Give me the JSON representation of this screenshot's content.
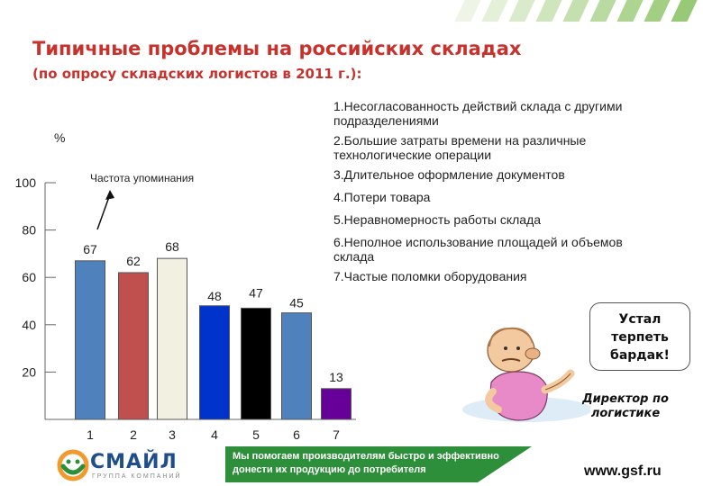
{
  "slide": {
    "title": "Типичные проблемы на российских складах",
    "subtitle": "(по опросу складских логистов в 2011 г.):"
  },
  "chart_data": {
    "type": "bar",
    "ylabel": "%",
    "annotation": "Частота упоминания",
    "ylim": [
      0,
      100
    ],
    "yticks": [
      20,
      40,
      60,
      80,
      100
    ],
    "categories": [
      "1",
      "2",
      "3",
      "4",
      "5",
      "6",
      "7"
    ],
    "values": [
      67,
      62,
      68,
      48,
      47,
      45,
      13
    ],
    "colors": [
      "#4f81bd",
      "#c0504d",
      "#f2f0e0",
      "#0033cc",
      "#000000",
      "#4f81bd",
      "#660099"
    ],
    "grid": false
  },
  "problems": [
    "1.Несогласованность действий склада с другими подразделениями",
    "2.Большие затраты времени на различные технологические операции",
    "3.Длительное оформление документов",
    "4.Потери товара",
    "5.Неравномерность работы склада",
    "6.Неполное использование площадей и объемов склада",
    "7.Частые поломки оборудования"
  ],
  "bubble": {
    "line1": "Устал",
    "line2": "терпеть",
    "line3": "бардак!"
  },
  "caption": {
    "line1": "Директор по",
    "line2": "логистике"
  },
  "footer": {
    "slogan_line1": "Мы помогаем производителям быстро и эффективно",
    "slogan_line2": "донести их продукцию до потребителя",
    "website": "www.gsf.ru",
    "logo_name": "СМАЙЛ",
    "logo_sub": "ГРУППА КОМПАНИЙ"
  },
  "colors": {
    "title": "#c8322d",
    "accent_green": "#2d8f3a",
    "accent_orange": "#f29a2e"
  }
}
